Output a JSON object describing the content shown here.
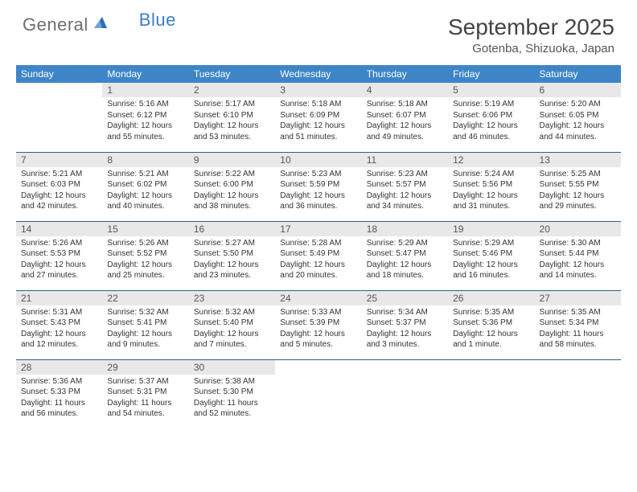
{
  "logo": {
    "part1": "General",
    "part2": "Blue"
  },
  "title": "September 2025",
  "location": "Gotenba, Shizuoka, Japan",
  "colors": {
    "header_bg": "#3d85c6",
    "header_text": "#ffffff",
    "daynum_bg": "#e8e8e8",
    "row_border": "#2f5f8f",
    "logo_gray": "#6e6e6e",
    "logo_blue": "#3d7cc9"
  },
  "dayHeaders": [
    "Sunday",
    "Monday",
    "Tuesday",
    "Wednesday",
    "Thursday",
    "Friday",
    "Saturday"
  ],
  "weeks": [
    [
      null,
      {
        "n": "1",
        "sr": "5:16 AM",
        "ss": "6:12 PM",
        "dl": "12 hours and 55 minutes."
      },
      {
        "n": "2",
        "sr": "5:17 AM",
        "ss": "6:10 PM",
        "dl": "12 hours and 53 minutes."
      },
      {
        "n": "3",
        "sr": "5:18 AM",
        "ss": "6:09 PM",
        "dl": "12 hours and 51 minutes."
      },
      {
        "n": "4",
        "sr": "5:18 AM",
        "ss": "6:07 PM",
        "dl": "12 hours and 49 minutes."
      },
      {
        "n": "5",
        "sr": "5:19 AM",
        "ss": "6:06 PM",
        "dl": "12 hours and 46 minutes."
      },
      {
        "n": "6",
        "sr": "5:20 AM",
        "ss": "6:05 PM",
        "dl": "12 hours and 44 minutes."
      }
    ],
    [
      {
        "n": "7",
        "sr": "5:21 AM",
        "ss": "6:03 PM",
        "dl": "12 hours and 42 minutes."
      },
      {
        "n": "8",
        "sr": "5:21 AM",
        "ss": "6:02 PM",
        "dl": "12 hours and 40 minutes."
      },
      {
        "n": "9",
        "sr": "5:22 AM",
        "ss": "6:00 PM",
        "dl": "12 hours and 38 minutes."
      },
      {
        "n": "10",
        "sr": "5:23 AM",
        "ss": "5:59 PM",
        "dl": "12 hours and 36 minutes."
      },
      {
        "n": "11",
        "sr": "5:23 AM",
        "ss": "5:57 PM",
        "dl": "12 hours and 34 minutes."
      },
      {
        "n": "12",
        "sr": "5:24 AM",
        "ss": "5:56 PM",
        "dl": "12 hours and 31 minutes."
      },
      {
        "n": "13",
        "sr": "5:25 AM",
        "ss": "5:55 PM",
        "dl": "12 hours and 29 minutes."
      }
    ],
    [
      {
        "n": "14",
        "sr": "5:26 AM",
        "ss": "5:53 PM",
        "dl": "12 hours and 27 minutes."
      },
      {
        "n": "15",
        "sr": "5:26 AM",
        "ss": "5:52 PM",
        "dl": "12 hours and 25 minutes."
      },
      {
        "n": "16",
        "sr": "5:27 AM",
        "ss": "5:50 PM",
        "dl": "12 hours and 23 minutes."
      },
      {
        "n": "17",
        "sr": "5:28 AM",
        "ss": "5:49 PM",
        "dl": "12 hours and 20 minutes."
      },
      {
        "n": "18",
        "sr": "5:29 AM",
        "ss": "5:47 PM",
        "dl": "12 hours and 18 minutes."
      },
      {
        "n": "19",
        "sr": "5:29 AM",
        "ss": "5:46 PM",
        "dl": "12 hours and 16 minutes."
      },
      {
        "n": "20",
        "sr": "5:30 AM",
        "ss": "5:44 PM",
        "dl": "12 hours and 14 minutes."
      }
    ],
    [
      {
        "n": "21",
        "sr": "5:31 AM",
        "ss": "5:43 PM",
        "dl": "12 hours and 12 minutes."
      },
      {
        "n": "22",
        "sr": "5:32 AM",
        "ss": "5:41 PM",
        "dl": "12 hours and 9 minutes."
      },
      {
        "n": "23",
        "sr": "5:32 AM",
        "ss": "5:40 PM",
        "dl": "12 hours and 7 minutes."
      },
      {
        "n": "24",
        "sr": "5:33 AM",
        "ss": "5:39 PM",
        "dl": "12 hours and 5 minutes."
      },
      {
        "n": "25",
        "sr": "5:34 AM",
        "ss": "5:37 PM",
        "dl": "12 hours and 3 minutes."
      },
      {
        "n": "26",
        "sr": "5:35 AM",
        "ss": "5:36 PM",
        "dl": "12 hours and 1 minute."
      },
      {
        "n": "27",
        "sr": "5:35 AM",
        "ss": "5:34 PM",
        "dl": "11 hours and 58 minutes."
      }
    ],
    [
      {
        "n": "28",
        "sr": "5:36 AM",
        "ss": "5:33 PM",
        "dl": "11 hours and 56 minutes."
      },
      {
        "n": "29",
        "sr": "5:37 AM",
        "ss": "5:31 PM",
        "dl": "11 hours and 54 minutes."
      },
      {
        "n": "30",
        "sr": "5:38 AM",
        "ss": "5:30 PM",
        "dl": "11 hours and 52 minutes."
      },
      null,
      null,
      null,
      null
    ]
  ],
  "labels": {
    "sunrise": "Sunrise: ",
    "sunset": "Sunset: ",
    "daylight": "Daylight: "
  }
}
